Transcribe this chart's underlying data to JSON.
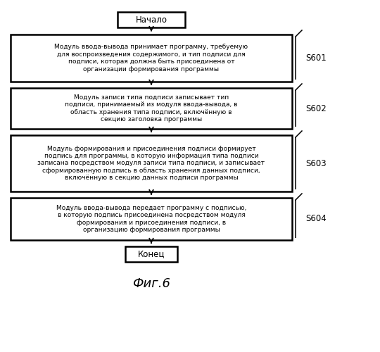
{
  "title": "Фиг.6",
  "background_color": "#ffffff",
  "start_label": "Начало",
  "end_label": "Конец",
  "step_labels": [
    "S601",
    "S602",
    "S603",
    "S604"
  ],
  "step_texts": [
    "Модуль ввода-вывода принимает программу, требуемую\nдля воспроизведения содержимого, и тип подписи для\nподписи, которая должна быть присоединена от\nорганизации формирования программы",
    "Модуль записи типа подписи записывает тип\nподписи, принимаемый из модуля ввода-вывода, в\nобласть хранения типа подписи, включённую в\nсекцию заголовка программы",
    "Модуль формирования и присоединения подписи формирует\nподпись для программы, в которую информация типа подписи\nзаписана посредством модуля записи типа подписи, и записывает\nсформированную подпись в область хранения данных подписи,\nвключённую в секцию данных подписи программы",
    "Модуль ввода-вывода передает программу с подписью,\nв которую подпись присоединена посредством модуля\nформирования и присоединения подписи, в\nорганизацию формирования программы"
  ],
  "text_color": "#000000",
  "font_size": 6.5,
  "label_font_size": 8.5,
  "title_font_size": 13
}
